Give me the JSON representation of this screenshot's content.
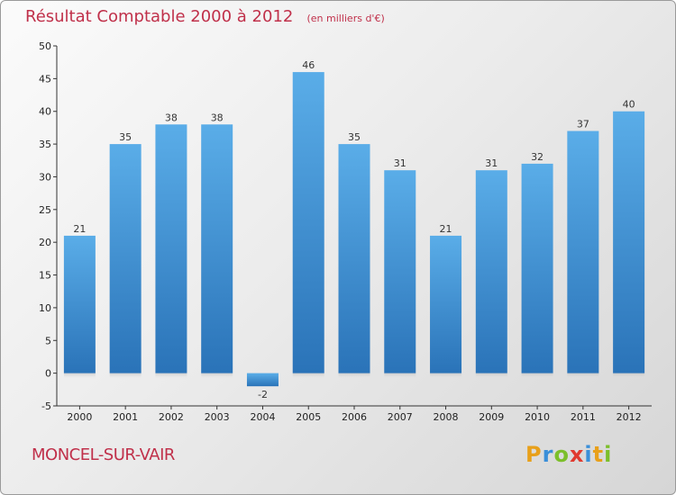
{
  "title": "Résultat Comptable 2000 à 2012",
  "subtitle": "(en milliers d'€)",
  "commune": "MONCEL-SUR-VAIR",
  "logo": {
    "letters": [
      "P",
      "r",
      "o",
      "x",
      "i",
      "t",
      "i"
    ],
    "colors": [
      "#e8a01a",
      "#3a8fd9",
      "#7cbf2a",
      "#e03a2f",
      "#3a8fd9",
      "#e8a01a",
      "#7cbf2a"
    ]
  },
  "colors": {
    "bar_top": "#5aade8",
    "bar_bottom": "#2a73b8",
    "title": "#c0304a"
  },
  "chart_data": {
    "type": "bar",
    "categories": [
      "2000",
      "2001",
      "2002",
      "2003",
      "2004",
      "2005",
      "2006",
      "2007",
      "2008",
      "2009",
      "2010",
      "2011",
      "2012"
    ],
    "values": [
      21,
      35,
      38,
      38,
      -2,
      46,
      35,
      31,
      21,
      31,
      32,
      37,
      40
    ],
    "yticks": [
      -5,
      0,
      5,
      10,
      15,
      20,
      25,
      30,
      35,
      40,
      45,
      50
    ],
    "ylim": [
      -5,
      50
    ],
    "grid": false,
    "data_labels": true
  }
}
